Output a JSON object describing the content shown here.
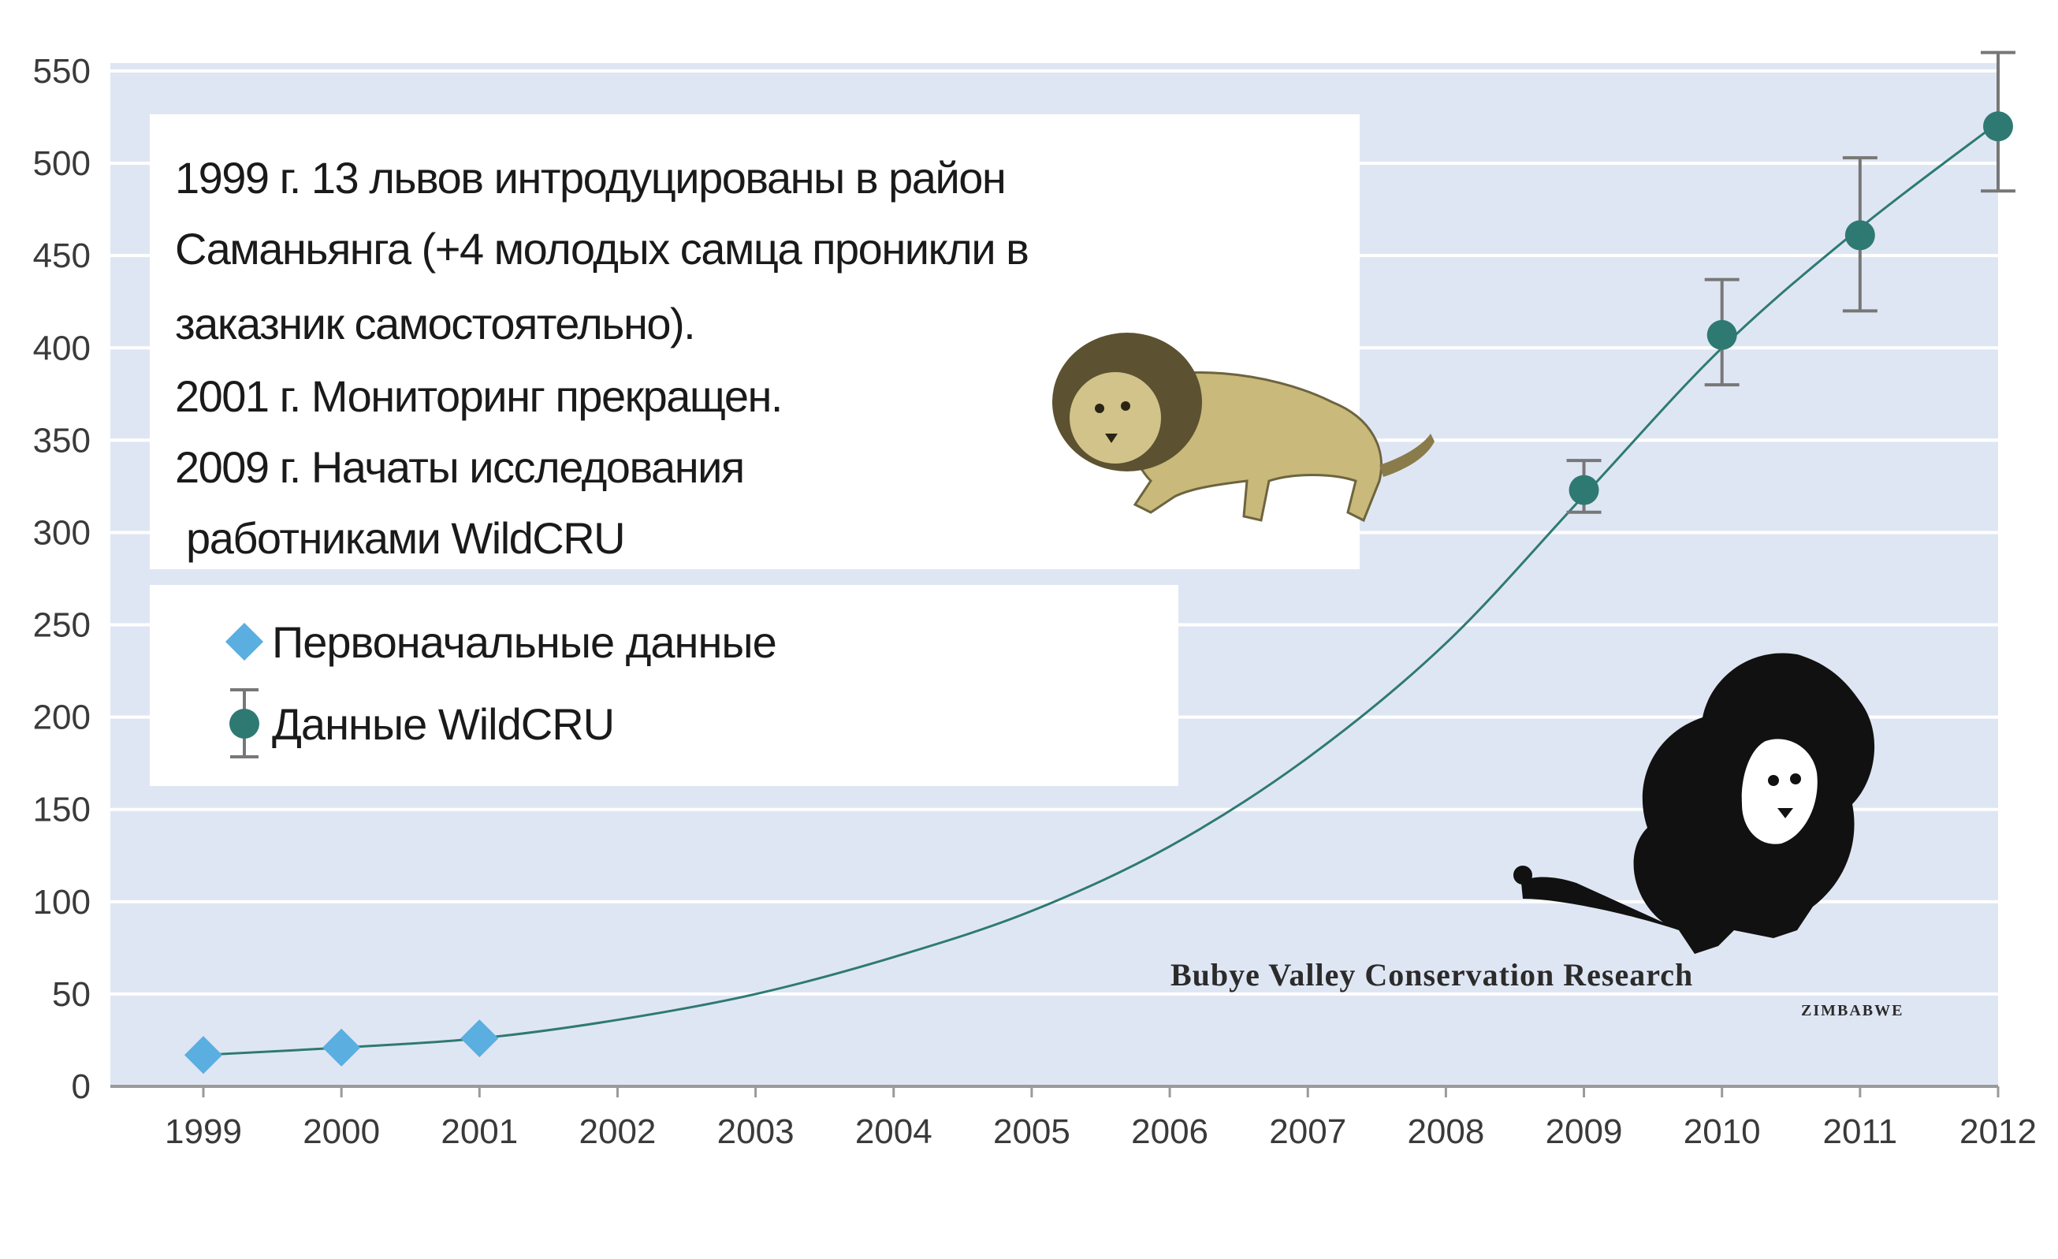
{
  "chart_data": {
    "type": "line",
    "title": "",
    "xlabel": "",
    "ylabel": "",
    "x_ticks": [
      "1999",
      "2000",
      "2001",
      "2002",
      "2003",
      "2004",
      "2005",
      "2006",
      "2007",
      "2008",
      "2009",
      "2010",
      "2011",
      "2012"
    ],
    "y_ticks": [
      "0",
      "50",
      "100",
      "150",
      "200",
      "250",
      "300",
      "350",
      "400",
      "450",
      "500",
      "550"
    ],
    "ylim": [
      0,
      550
    ],
    "xlim": [
      1999,
      2012
    ],
    "grid": true,
    "background_color": "#dfe6f3",
    "series": [
      {
        "name": "Первоначальные данные",
        "marker": "diamond",
        "color": "#5aaee0",
        "x": [
          1999,
          2000,
          2001
        ],
        "y": [
          17,
          21,
          26
        ]
      },
      {
        "name": "Данные WildCRU",
        "marker": "circle",
        "color": "#2e7a73",
        "x": [
          2009,
          2010,
          2011,
          2012
        ],
        "y": [
          323,
          407,
          461,
          520
        ],
        "error_low": [
          311,
          380,
          420,
          485
        ],
        "error_high": [
          339,
          437,
          503,
          560
        ]
      }
    ],
    "trend_line": {
      "color": "#2e7a73",
      "x": [
        1999,
        2000,
        2001,
        2002,
        2003,
        2004,
        2005,
        2006,
        2007,
        2008,
        2009,
        2010,
        2011,
        2012
      ],
      "y": [
        17,
        21,
        26,
        36,
        50,
        70,
        95,
        130,
        178,
        240,
        320,
        400,
        465,
        522
      ]
    },
    "annotation": {
      "lines": [
        "1999 г. 13 львов интродуцированы в район",
        "Саманьянга (+4 молодых самца проникли в",
        "заказник самостоятельно).",
        "2001 г. Мониторинг прекращен.",
        "2009 г. Начаты исследования",
        " работниками WildCRU"
      ]
    },
    "legend": {
      "placement": "upper-left",
      "items": [
        "Первоначальные данные",
        "Данные WildCRU"
      ]
    }
  },
  "logo": {
    "name": "Bubye Valley Conservation Research",
    "subtitle": "ZIMBABWE",
    "icon": "lion-icon"
  },
  "illustration": {
    "icon": "walking-lion-icon"
  }
}
